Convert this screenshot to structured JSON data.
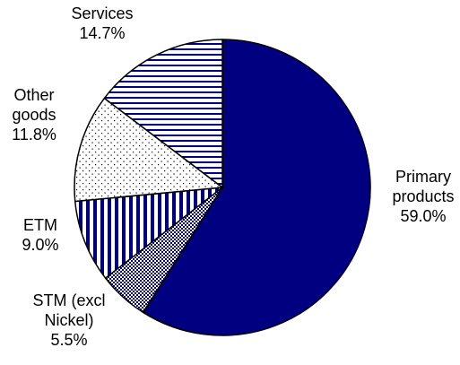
{
  "chart_data": {
    "type": "pie",
    "start": "12 o'clock",
    "direction": "clockwise",
    "slices": [
      {
        "label_lines": [
          "Primary",
          "products"
        ],
        "value_label": "59.0%",
        "value": 59.0,
        "fill": "#000080",
        "pattern": "solid"
      },
      {
        "label_lines": [
          "STM (excl",
          "Nickel)"
        ],
        "value_label": "5.5%",
        "value": 5.5,
        "fill": "#000080",
        "pattern": "checker"
      },
      {
        "label_lines": [
          "ETM"
        ],
        "value_label": "9.0%",
        "value": 9.0,
        "fill": "#000080",
        "pattern": "vertical-stripes"
      },
      {
        "label_lines": [
          "Other",
          "goods"
        ],
        "value_label": "11.8%",
        "value": 11.8,
        "fill": "#000080",
        "pattern": "dots"
      },
      {
        "label_lines": [
          "Services"
        ],
        "value_label": "14.7%",
        "value": 14.7,
        "fill": "#000080",
        "pattern": "horizontal-stripes"
      }
    ]
  }
}
